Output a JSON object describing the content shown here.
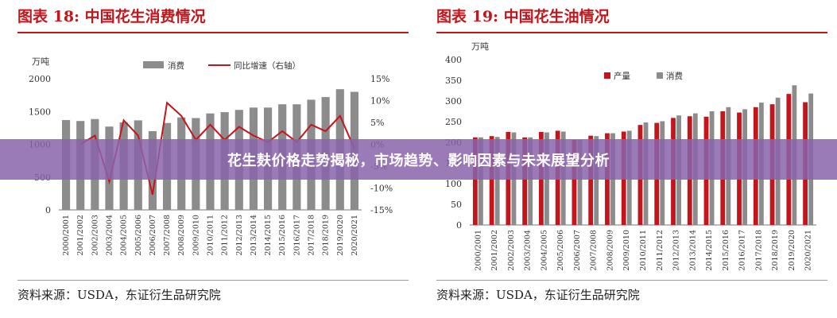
{
  "banner": {
    "title": "花生麸价格走势揭秘，市场趋势、影响因素与未来展望分析"
  },
  "left": {
    "fig_title": "图表 18:  中国花生消费情况",
    "source": "资料来源：USDA，东证衍生品研究院"
  },
  "right": {
    "fig_title": "图表 19:  中国花生油情况",
    "source": "资料来源：USDA，东证衍生品研究院"
  },
  "colors": {
    "red": "#c3161c",
    "gray": "#8c8c8c",
    "banner": "#8a64aa"
  },
  "chart_data": [
    {
      "type": "bar+line",
      "title": "图表 18:  中国花生消费情况",
      "ylabel": "万吨",
      "ylim": [
        0,
        2000
      ],
      "yticks": [
        "0",
        "500",
        "1000",
        "1500",
        "2000"
      ],
      "y2lim": [
        -15,
        15
      ],
      "y2ticks": [
        "-15%",
        "-10%",
        "-5%",
        "0%",
        "5%",
        "10%",
        "15%"
      ],
      "categories": [
        "2000/2001",
        "2001/2002",
        "2002/2003",
        "2003/2004",
        "2004/2005",
        "2005/2006",
        "2006/2007",
        "2007/2008",
        "2008/2009",
        "2009/2010",
        "2010/2011",
        "2011/2012",
        "2012/2013",
        "2013/2014",
        "2014/2015",
        "2015/2016",
        "2016/2017",
        "2017/2018",
        "2018/2019",
        "2019/2020",
        "2020/2021"
      ],
      "series": [
        {
          "name": "消费",
          "kind": "bar",
          "color": "#8c8c8c",
          "values": [
            1370,
            1355,
            1385,
            1270,
            1335,
            1365,
            1200,
            1325,
            1410,
            1400,
            1470,
            1490,
            1525,
            1560,
            1560,
            1610,
            1610,
            1680,
            1720,
            1840,
            1800
          ]
        },
        {
          "name": "同比增速（右轴）",
          "kind": "line",
          "axis": "right",
          "color": "#c3161c",
          "values": [
            null,
            0.0,
            2.0,
            -8.5,
            5.5,
            2.0,
            -11.5,
            9.5,
            6.5,
            1.0,
            4.5,
            1.0,
            4.0,
            2.0,
            0.5,
            3.0,
            0.5,
            4.5,
            3.0,
            6.5,
            -1.0
          ]
        }
      ],
      "legend": "top"
    },
    {
      "type": "bar",
      "title": "图表 19:  中国花生油情况",
      "ylabel": "万吨",
      "ylim": [
        0,
        400
      ],
      "yticks": [
        "0",
        "50",
        "100",
        "150",
        "200",
        "250",
        "300",
        "350",
        "400"
      ],
      "categories": [
        "2000/2001",
        "2001/2002",
        "2002/2003",
        "2003/2004",
        "2004/2005",
        "2005/2006",
        "2006/2007",
        "2007/2008",
        "2008/2009",
        "2009/2010",
        "2010/2011",
        "2011/2012",
        "2012/2013",
        "2013/2014",
        "2014/2015",
        "2015/2016",
        "2016/2017",
        "2017/2018",
        "2018/2019",
        "2019/2020",
        "2020/2021"
      ],
      "series": [
        {
          "name": "产量",
          "color": "#c3161c",
          "values": [
            212,
            215,
            225,
            212,
            225,
            228,
            206,
            216,
            222,
            226,
            242,
            247,
            259,
            263,
            262,
            275,
            272,
            285,
            292,
            317,
            297
          ]
        },
        {
          "name": "消费",
          "color": "#8c8c8c",
          "values": [
            212,
            213,
            224,
            212,
            224,
            226,
            206,
            215,
            222,
            228,
            248,
            251,
            265,
            270,
            275,
            285,
            280,
            296,
            308,
            338,
            318
          ]
        }
      ],
      "legend": "top"
    }
  ]
}
